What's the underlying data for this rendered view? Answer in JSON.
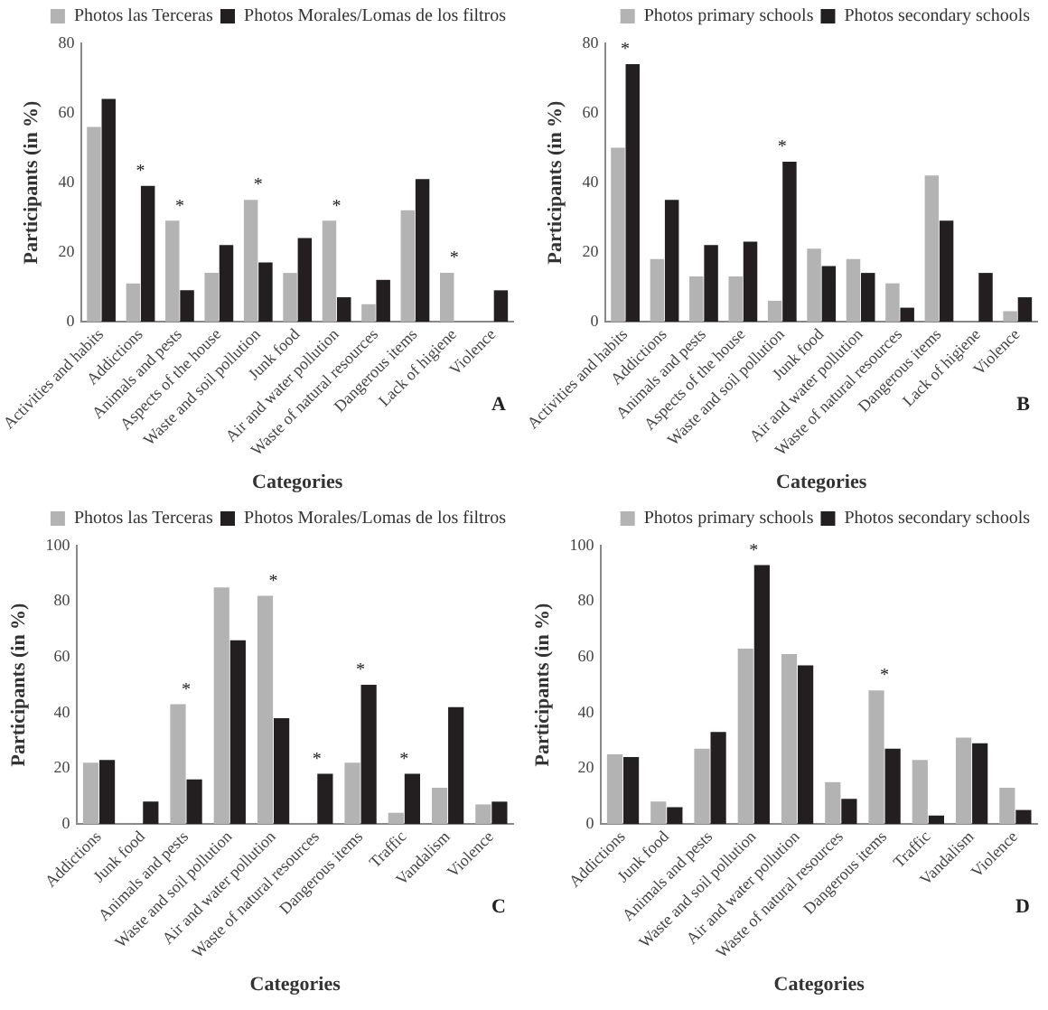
{
  "chart_data": [
    {
      "type": "bar",
      "xlabel": "Categories",
      "ylabel": "Participants (in %)",
      "categories": [
        "Activities and habits",
        "Addictions",
        "Animals and pests",
        "Aspects of the house",
        "Waste and soil pollution",
        "Junk food",
        "Air and water pollution",
        "Waste of natural resources",
        "Dangerous items",
        "Lack of higiene",
        "Violence"
      ],
      "series": [
        {
          "name": "Photos las Terceras",
          "color": "#b3b3b3",
          "values": [
            56,
            11,
            29,
            14,
            35,
            14,
            29,
            5,
            32,
            14,
            0
          ]
        },
        {
          "name": "Photos Morales/Lomas de los filtros",
          "color": "#231f20",
          "values": [
            64,
            39,
            9,
            22,
            17,
            24,
            7,
            12,
            41,
            0,
            9
          ]
        }
      ],
      "ylim": [
        0,
        80
      ],
      "yticks": [
        0,
        20,
        40,
        60,
        80
      ],
      "grid": false,
      "legend": "top right",
      "annotations": [
        {
          "text": "*",
          "x": "Addictions",
          "y": 39
        },
        {
          "text": "*",
          "x": "Animals and pests",
          "y": 29
        },
        {
          "text": "*",
          "x": "Waste and soil pollution",
          "y": 35
        },
        {
          "text": "*",
          "x": "Air and water pollution",
          "y": 29
        },
        {
          "text": "*",
          "x": "Lack of higiene",
          "y": 14
        },
        "A"
      ]
    },
    {
      "type": "bar",
      "xlabel": "Categories",
      "ylabel": "Participants (in %)",
      "categories": [
        "Activities and habits",
        "Addictions",
        "Animals and pests",
        "Aspects of the house",
        "Waste and soil pollution",
        "Junk food",
        "Air and water pollution",
        "Waste of natural resources",
        "Dangerous items",
        "Lack of higiene",
        "Violence"
      ],
      "series": [
        {
          "name": "Photos primary schools",
          "color": "#b3b3b3",
          "values": [
            50,
            18,
            13,
            13,
            6,
            21,
            18,
            11,
            42,
            0,
            3
          ]
        },
        {
          "name": "Photos secondary schools",
          "color": "#231f20",
          "values": [
            74,
            35,
            22,
            23,
            46,
            16,
            14,
            4,
            29,
            14,
            7
          ]
        }
      ],
      "ylim": [
        0,
        80
      ],
      "yticks": [
        0,
        20,
        40,
        60,
        80
      ],
      "grid": false,
      "legend": "top right",
      "annotations": [
        {
          "text": "*",
          "x": "Activities and habits",
          "y": 74
        },
        {
          "text": "*",
          "x": "Waste and soil pollution",
          "y": 46
        },
        "B"
      ]
    },
    {
      "type": "bar",
      "xlabel": "Categories",
      "ylabel": "Participants (in %)",
      "categories": [
        "Addictions",
        "Junk food",
        "Animals and pests",
        "Waste and soil pollution",
        "Air and water pollution",
        "Waste of natural resources",
        "Dangerous items",
        "Traffic",
        "Vandalism",
        "Violence"
      ],
      "series": [
        {
          "name": "Photos las Terceras",
          "color": "#b3b3b3",
          "values": [
            22,
            0,
            43,
            85,
            82,
            0,
            22,
            4,
            13,
            7
          ]
        },
        {
          "name": "Photos Morales/Lomas de los filtros",
          "color": "#231f20",
          "values": [
            23,
            8,
            16,
            66,
            38,
            18,
            50,
            18,
            42,
            8
          ]
        }
      ],
      "ylim": [
        0,
        100
      ],
      "yticks": [
        0,
        20,
        40,
        60,
        80,
        100
      ],
      "grid": false,
      "legend": "top right",
      "annotations": [
        {
          "text": "*",
          "x": "Animals and pests",
          "y": 43
        },
        {
          "text": "*",
          "x": "Air and water pollution",
          "y": 82
        },
        {
          "text": "*",
          "x": "Waste of natural resources",
          "y": 18
        },
        {
          "text": "*",
          "x": "Dangerous items",
          "y": 50
        },
        {
          "text": "*",
          "x": "Traffic",
          "y": 18
        },
        "C"
      ]
    },
    {
      "type": "bar",
      "xlabel": "Categories",
      "ylabel": "Participants (in %)",
      "categories": [
        "Addictions",
        "Junk food",
        "Animals and pests",
        "Waste and soil pollution",
        "Air and water pollution",
        "Waste of natural resources",
        "Dangerous items",
        "Traffic",
        "Vandalism",
        "Violence"
      ],
      "series": [
        {
          "name": "Photos primary schools",
          "color": "#b3b3b3",
          "values": [
            25,
            8,
            27,
            63,
            61,
            15,
            48,
            23,
            31,
            13
          ]
        },
        {
          "name": "Photos secondary schools",
          "color": "#231f20",
          "values": [
            24,
            6,
            33,
            93,
            57,
            9,
            27,
            3,
            29,
            5
          ]
        }
      ],
      "ylim": [
        0,
        100
      ],
      "yticks": [
        0,
        20,
        40,
        60,
        80,
        100
      ],
      "grid": false,
      "legend": "top right",
      "annotations": [
        {
          "text": "*",
          "x": "Waste and soil pollution",
          "y": 93
        },
        {
          "text": "*",
          "x": "Dangerous items",
          "y": 48
        },
        "D"
      ]
    }
  ]
}
